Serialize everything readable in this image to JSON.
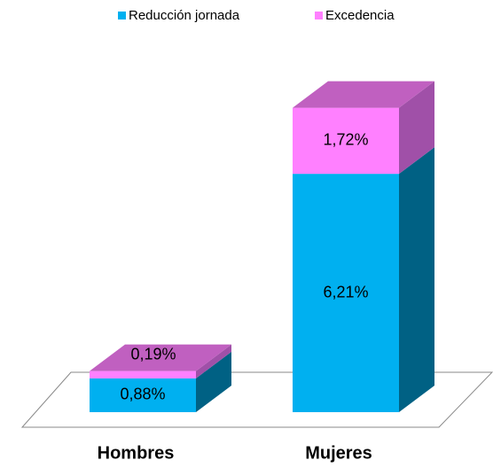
{
  "chart_data": {
    "type": "bar3d-stacked",
    "categories": [
      "Hombres",
      "Mujeres"
    ],
    "series": [
      {
        "name": "Reducción jornada",
        "color": "#00b0f0",
        "values": [
          0.88,
          6.21
        ],
        "value_labels": [
          "0,88%",
          "6,21%"
        ]
      },
      {
        "name": "Excedencia",
        "color": "#ff80ff",
        "values": [
          0.19,
          1.72
        ],
        "value_labels": [
          "0,19%",
          "1,72%"
        ]
      }
    ],
    "legend": "top"
  }
}
